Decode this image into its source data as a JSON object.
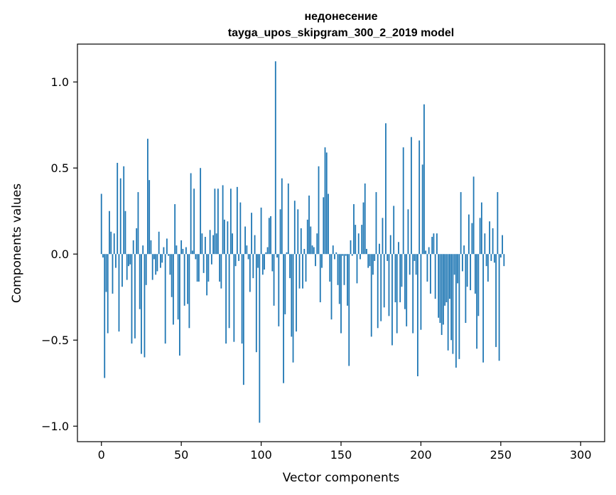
{
  "chart_data": {
    "type": "bar",
    "title_lines": [
      "недонесение",
      "tayga_upos_skipgram_300_2_2019 model"
    ],
    "xlabel": "Vector components",
    "ylabel": "Components values",
    "xlim": [
      -15,
      315
    ],
    "ylim": [
      -1.09,
      1.22
    ],
    "xticks": [
      0,
      50,
      100,
      150,
      200,
      250,
      300
    ],
    "yticks": [
      -1.0,
      -0.5,
      0.0,
      0.5,
      1.0
    ],
    "ytick_labels": [
      "−1.0",
      "−0.5",
      "0.0",
      "0.5",
      "1.0"
    ],
    "bar_color": "#1f77b4",
    "grid": false,
    "values": [
      0.35,
      -0.02,
      -0.72,
      -0.22,
      -0.46,
      0.25,
      0.13,
      -0.23,
      0.12,
      -0.08,
      0.53,
      -0.45,
      0.44,
      -0.19,
      0.51,
      0.25,
      -0.15,
      -0.07,
      -0.06,
      -0.52,
      0.08,
      -0.49,
      0.15,
      0.36,
      -0.32,
      -0.58,
      0.05,
      -0.6,
      -0.18,
      0.67,
      0.43,
      0.08,
      -0.15,
      -0.03,
      -0.12,
      -0.1,
      0.13,
      -0.08,
      -0.05,
      0.04,
      -0.52,
      0.09,
      -0.01,
      -0.12,
      -0.25,
      -0.41,
      0.29,
      0.05,
      -0.38,
      -0.59,
      0.08,
      0.03,
      -0.3,
      0.04,
      -0.29,
      -0.43,
      0.47,
      0.02,
      0.38,
      -0.03,
      -0.16,
      -0.16,
      0.5,
      0.12,
      -0.11,
      0.1,
      -0.24,
      -0.16,
      0.14,
      -0.06,
      0.11,
      0.38,
      0.12,
      0.38,
      -0.16,
      -0.2,
      0.4,
      0.2,
      -0.52,
      0.19,
      -0.43,
      0.38,
      0.12,
      -0.51,
      -0.07,
      0.39,
      -0.04,
      0.3,
      -0.52,
      -0.76,
      0.16,
      0.05,
      -0.03,
      -0.22,
      0.24,
      -0.14,
      0.11,
      -0.57,
      -0.08,
      -0.98,
      0.27,
      -0.12,
      -0.09,
      0.01,
      0.04,
      0.21,
      0.22,
      -0.1,
      -0.3,
      1.12,
      -0.02,
      -0.42,
      0.26,
      0.44,
      -0.75,
      -0.35,
      0.01,
      0.41,
      -0.14,
      -0.48,
      -0.63,
      0.31,
      -0.45,
      0.26,
      -0.2,
      0.15,
      -0.2,
      0.03,
      -0.16,
      0.2,
      0.34,
      0.16,
      0.05,
      0.04,
      -0.07,
      0.12,
      0.51,
      -0.28,
      -0.08,
      0.33,
      0.62,
      0.59,
      0.35,
      -0.16,
      -0.38,
      0.05,
      -0.03,
      0.01,
      -0.18,
      -0.29,
      -0.46,
      -0.01,
      -0.18,
      -0.01,
      -0.3,
      -0.65,
      0.08,
      -0.01,
      0.29,
      0.17,
      -0.17,
      0.12,
      -0.03,
      0.17,
      0.3,
      0.41,
      0.03,
      -0.08,
      -0.07,
      -0.48,
      -0.12,
      -0.04,
      0.36,
      -0.43,
      0.06,
      -0.39,
      0.21,
      -0.31,
      0.76,
      -0.04,
      -0.36,
      0.11,
      -0.53,
      0.28,
      -0.28,
      -0.46,
      0.07,
      -0.28,
      -0.19,
      0.62,
      -0.32,
      -0.42,
      0.26,
      -0.12,
      0.68,
      -0.46,
      -0.04,
      -0.12,
      -0.71,
      0.66,
      -0.44,
      0.52,
      0.87,
      0.02,
      -0.16,
      0.04,
      -0.23,
      0.1,
      0.12,
      -0.26,
      0.12,
      -0.37,
      -0.4,
      -0.47,
      -0.41,
      -0.3,
      -0.28,
      -0.56,
      -0.26,
      -0.5,
      -0.58,
      -0.12,
      -0.66,
      -0.17,
      -0.61,
      0.36,
      -0.1,
      0.05,
      -0.4,
      -0.19,
      0.23,
      -0.21,
      0.18,
      0.45,
      -0.23,
      -0.55,
      -0.36,
      0.21,
      0.3,
      -0.63,
      0.12,
      -0.07,
      -0.16,
      0.19,
      -0.04,
      0.15,
      -0.05,
      -0.54,
      0.36,
      -0.62,
      -0.02,
      0.11,
      -0.07
    ]
  }
}
